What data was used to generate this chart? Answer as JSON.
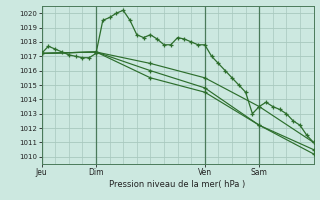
{
  "bg_color": "#cce8e0",
  "grid_color": "#a8c8be",
  "line_color": "#2d6e2d",
  "title": "Pression niveau de la mer( hPa )",
  "ylim": [
    1009.5,
    1020.5
  ],
  "yticks": [
    1010,
    1011,
    1012,
    1013,
    1014,
    1015,
    1016,
    1017,
    1018,
    1019,
    1020
  ],
  "xtick_labels": [
    "Jeu",
    "Dim",
    "Ven",
    "Sam"
  ],
  "xtick_positions": [
    0,
    24,
    72,
    96
  ],
  "vlines": [
    0,
    24,
    72,
    96
  ],
  "series": [
    [
      0,
      1017.2,
      3,
      1017.7,
      6,
      1017.5,
      9,
      1017.3,
      12,
      1017.1,
      15,
      1017.0,
      18,
      1016.9,
      21,
      1016.9,
      24,
      1017.2,
      27,
      1019.5,
      30,
      1019.7,
      33,
      1020.0,
      36,
      1020.2,
      39,
      1019.5,
      42,
      1018.5,
      45,
      1018.3,
      48,
      1018.5,
      51,
      1018.2,
      54,
      1017.8,
      57,
      1017.8,
      60,
      1018.3,
      63,
      1018.2,
      66,
      1018.0,
      69,
      1017.8,
      72,
      1017.8,
      75,
      1017.0,
      78,
      1016.5,
      81,
      1016.0,
      84,
      1015.5,
      87,
      1015.0,
      90,
      1014.5,
      93,
      1013.0,
      96,
      1013.5,
      99,
      1013.8,
      102,
      1013.5,
      105,
      1013.3,
      108,
      1013.0,
      111,
      1012.5,
      114,
      1012.2,
      117,
      1011.5,
      120,
      1011.0
    ],
    [
      0,
      1017.2,
      24,
      1017.3,
      48,
      1016.5,
      72,
      1015.5,
      96,
      1013.5,
      120,
      1011.0
    ],
    [
      0,
      1017.2,
      24,
      1017.3,
      48,
      1016.0,
      72,
      1014.8,
      96,
      1012.2,
      120,
      1010.5
    ],
    [
      0,
      1017.2,
      24,
      1017.3,
      48,
      1015.5,
      72,
      1014.5,
      96,
      1012.2,
      120,
      1010.2
    ]
  ]
}
